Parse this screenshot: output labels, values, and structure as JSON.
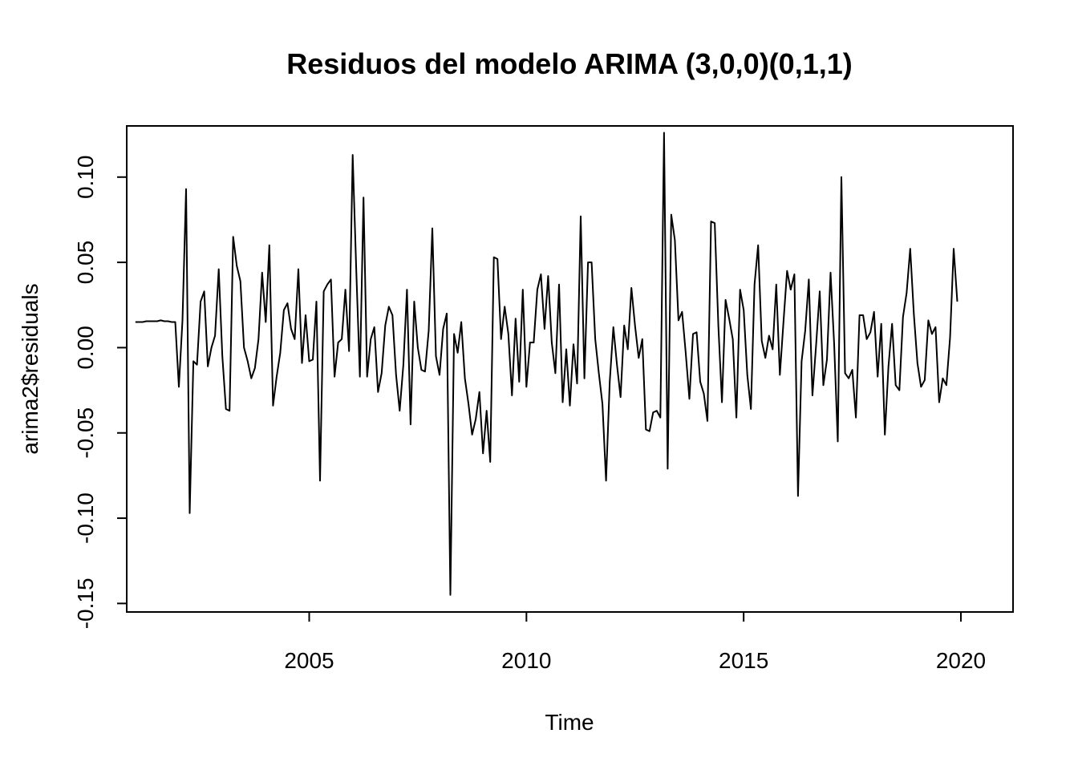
{
  "chart_data": {
    "type": "line",
    "title": "Residuos del modelo ARIMA (3,0,0)(0,1,1)",
    "xlabel": "Time",
    "ylabel": "arima2$residuals",
    "xlim": [
      2000.8,
      2021.2
    ],
    "ylim": [
      -0.155,
      0.13
    ],
    "x_ticks": [
      2005,
      2010,
      2015,
      2020
    ],
    "x_tick_labels": [
      "2005",
      "2010",
      "2015",
      "2020"
    ],
    "y_ticks": [
      -0.15,
      -0.1,
      -0.05,
      0.0,
      0.05,
      0.1
    ],
    "y_tick_labels": [
      "-0.15",
      "-0.10",
      "-0.05",
      "0.00",
      "0.05",
      "0.10"
    ],
    "grid": false,
    "legend": "none",
    "line_color": "#000000",
    "x_start": 2001.0,
    "x_step": 0.0833333,
    "series": [
      {
        "values": [
          0.015,
          0.015,
          0.015,
          0.0155,
          0.0155,
          0.0155,
          0.0155,
          0.016,
          0.0155,
          0.0155,
          0.015,
          0.015,
          -0.023,
          0.016,
          0.093,
          -0.097,
          -0.008,
          -0.01,
          0.027,
          0.033,
          -0.011,
          0.0,
          0.007,
          0.046,
          -0.005,
          -0.036,
          -0.037,
          0.065,
          0.048,
          0.039,
          0.0,
          -0.008,
          -0.018,
          -0.012,
          0.005,
          0.044,
          0.015,
          0.06,
          -0.034,
          -0.017,
          -0.003,
          0.022,
          0.026,
          0.011,
          0.005,
          0.046,
          -0.009,
          0.019,
          -0.008,
          -0.007,
          0.027,
          -0.078,
          0.033,
          0.037,
          0.04,
          -0.017,
          0.003,
          0.005,
          0.034,
          -0.002,
          0.113,
          0.045,
          -0.017,
          0.088,
          -0.017,
          0.005,
          0.012,
          -0.026,
          -0.015,
          0.013,
          0.024,
          0.019,
          -0.016,
          -0.037,
          -0.01,
          0.034,
          -0.045,
          0.027,
          0.0,
          -0.013,
          -0.014,
          0.01,
          0.07,
          -0.005,
          -0.016,
          0.011,
          0.02,
          -0.145,
          0.008,
          -0.003,
          0.015,
          -0.018,
          -0.033,
          -0.051,
          -0.042,
          -0.026,
          -0.062,
          -0.037,
          -0.067,
          0.053,
          0.052,
          0.005,
          0.024,
          0.008,
          -0.028,
          0.017,
          -0.02,
          0.034,
          -0.023,
          0.003,
          0.003,
          0.034,
          0.043,
          0.011,
          0.042,
          0.003,
          -0.015,
          0.037,
          -0.032,
          -0.001,
          -0.034,
          0.002,
          -0.021,
          0.077,
          -0.018,
          0.05,
          0.05,
          0.005,
          -0.015,
          -0.033,
          -0.078,
          -0.02,
          0.012,
          -0.01,
          -0.029,
          0.013,
          -0.001,
          0.035,
          0.013,
          -0.006,
          0.005,
          -0.048,
          -0.049,
          -0.038,
          -0.037,
          -0.041,
          0.126,
          -0.071,
          0.078,
          0.063,
          0.016,
          0.021,
          -0.003,
          -0.03,
          0.008,
          0.009,
          -0.02,
          -0.027,
          -0.043,
          0.074,
          0.073,
          0.013,
          -0.032,
          0.028,
          0.017,
          0.005,
          -0.041,
          0.034,
          0.022,
          -0.016,
          -0.036,
          0.037,
          0.06,
          0.004,
          -0.006,
          0.007,
          -0.001,
          0.037,
          -0.016,
          0.015,
          0.045,
          0.034,
          0.043,
          -0.087,
          -0.008,
          0.01,
          0.04,
          -0.028,
          0.001,
          0.033,
          -0.022,
          -0.007,
          0.044,
          0.002,
          -0.055,
          0.1,
          -0.015,
          -0.018,
          -0.013,
          -0.041,
          0.019,
          0.019,
          0.005,
          0.009,
          0.021,
          -0.017,
          0.014,
          -0.051,
          -0.011,
          0.014,
          -0.022,
          -0.025,
          0.018,
          0.032,
          0.058,
          0.02,
          -0.009,
          -0.023,
          -0.019,
          0.016,
          0.008,
          0.012,
          -0.032,
          -0.018,
          -0.022,
          0.006,
          0.058,
          0.027
        ]
      }
    ]
  }
}
